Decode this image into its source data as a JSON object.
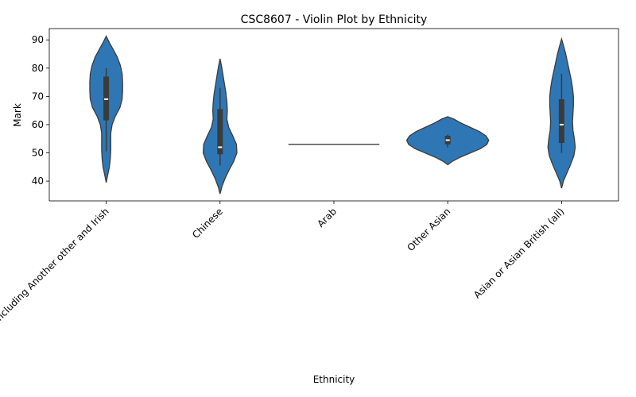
{
  "chart_data": {
    "type": "violin",
    "title": "CSC8607 - Violin Plot by Ethnicity",
    "xlabel": "Ethnicity",
    "ylabel": "Mark",
    "ylim": [
      33,
      94
    ],
    "yticks": [
      40,
      50,
      60,
      70,
      80,
      90
    ],
    "grid": false,
    "fill_color": "#2f77b4",
    "edge_color": "#3b3b3b",
    "categories": [
      "White including Another other and Irish",
      "Chinese",
      "Arab",
      "Other Asian",
      "Asian or Asian British (all)"
    ],
    "violins": [
      {
        "category": "White including Another other and Irish",
        "profile": [
          [
            39.5,
            0.0
          ],
          [
            42,
            0.03
          ],
          [
            45,
            0.07
          ],
          [
            48,
            0.09
          ],
          [
            51,
            0.1
          ],
          [
            54,
            0.1
          ],
          [
            57,
            0.1
          ],
          [
            60,
            0.13
          ],
          [
            63,
            0.2
          ],
          [
            66,
            0.3
          ],
          [
            69,
            0.35
          ],
          [
            72,
            0.36
          ],
          [
            75,
            0.36
          ],
          [
            78,
            0.35
          ],
          [
            81,
            0.31
          ],
          [
            84,
            0.24
          ],
          [
            87,
            0.14
          ],
          [
            89,
            0.07
          ],
          [
            91.3,
            0.0
          ]
        ],
        "whisker": [
          50.5,
          80
        ],
        "q1": 61.5,
        "median": 69,
        "q3": 77
      },
      {
        "category": "Chinese",
        "profile": [
          [
            35.5,
            0.0
          ],
          [
            38,
            0.04
          ],
          [
            41,
            0.11
          ],
          [
            44,
            0.2
          ],
          [
            47,
            0.3
          ],
          [
            50,
            0.37
          ],
          [
            53,
            0.36
          ],
          [
            56,
            0.28
          ],
          [
            59,
            0.19
          ],
          [
            62,
            0.15
          ],
          [
            65,
            0.16
          ],
          [
            68,
            0.15
          ],
          [
            71,
            0.13
          ],
          [
            74,
            0.1
          ],
          [
            77,
            0.07
          ],
          [
            80,
            0.04
          ],
          [
            83.3,
            0.0
          ]
        ],
        "whisker": [
          45.5,
          73
        ],
        "q1": 49.5,
        "median": 52,
        "q3": 65.5
      },
      {
        "category": "Arab",
        "profile": [
          [
            53,
            0.0
          ],
          [
            53,
            1.0
          ],
          [
            53,
            0.0
          ]
        ],
        "whisker": [
          53,
          53
        ],
        "q1": 53,
        "median": 53,
        "q3": 53
      },
      {
        "category": "Other Asian",
        "profile": [
          [
            45.8,
            0.0
          ],
          [
            47,
            0.1
          ],
          [
            48.5,
            0.28
          ],
          [
            50,
            0.5
          ],
          [
            51.5,
            0.72
          ],
          [
            53,
            0.86
          ],
          [
            54.5,
            0.9
          ],
          [
            56,
            0.84
          ],
          [
            57.5,
            0.7
          ],
          [
            59,
            0.5
          ],
          [
            60.5,
            0.3
          ],
          [
            62,
            0.13
          ],
          [
            62.8,
            0.0
          ]
        ],
        "whisker": [
          52,
          56.5
        ],
        "q1": 53,
        "median": 54.5,
        "q3": 56
      },
      {
        "category": "Asian or Asian British (all)",
        "profile": [
          [
            37.5,
            0.0
          ],
          [
            40,
            0.04
          ],
          [
            43,
            0.12
          ],
          [
            46,
            0.2
          ],
          [
            49,
            0.27
          ],
          [
            52,
            0.3
          ],
          [
            55,
            0.28
          ],
          [
            58,
            0.25
          ],
          [
            61,
            0.24
          ],
          [
            64,
            0.25
          ],
          [
            67,
            0.26
          ],
          [
            70,
            0.26
          ],
          [
            73,
            0.24
          ],
          [
            76,
            0.21
          ],
          [
            79,
            0.17
          ],
          [
            82,
            0.13
          ],
          [
            85,
            0.09
          ],
          [
            87.5,
            0.05
          ],
          [
            90.3,
            0.0
          ]
        ],
        "whisker": [
          50,
          78
        ],
        "q1": 53.5,
        "median": 60,
        "q3": 69
      }
    ]
  }
}
